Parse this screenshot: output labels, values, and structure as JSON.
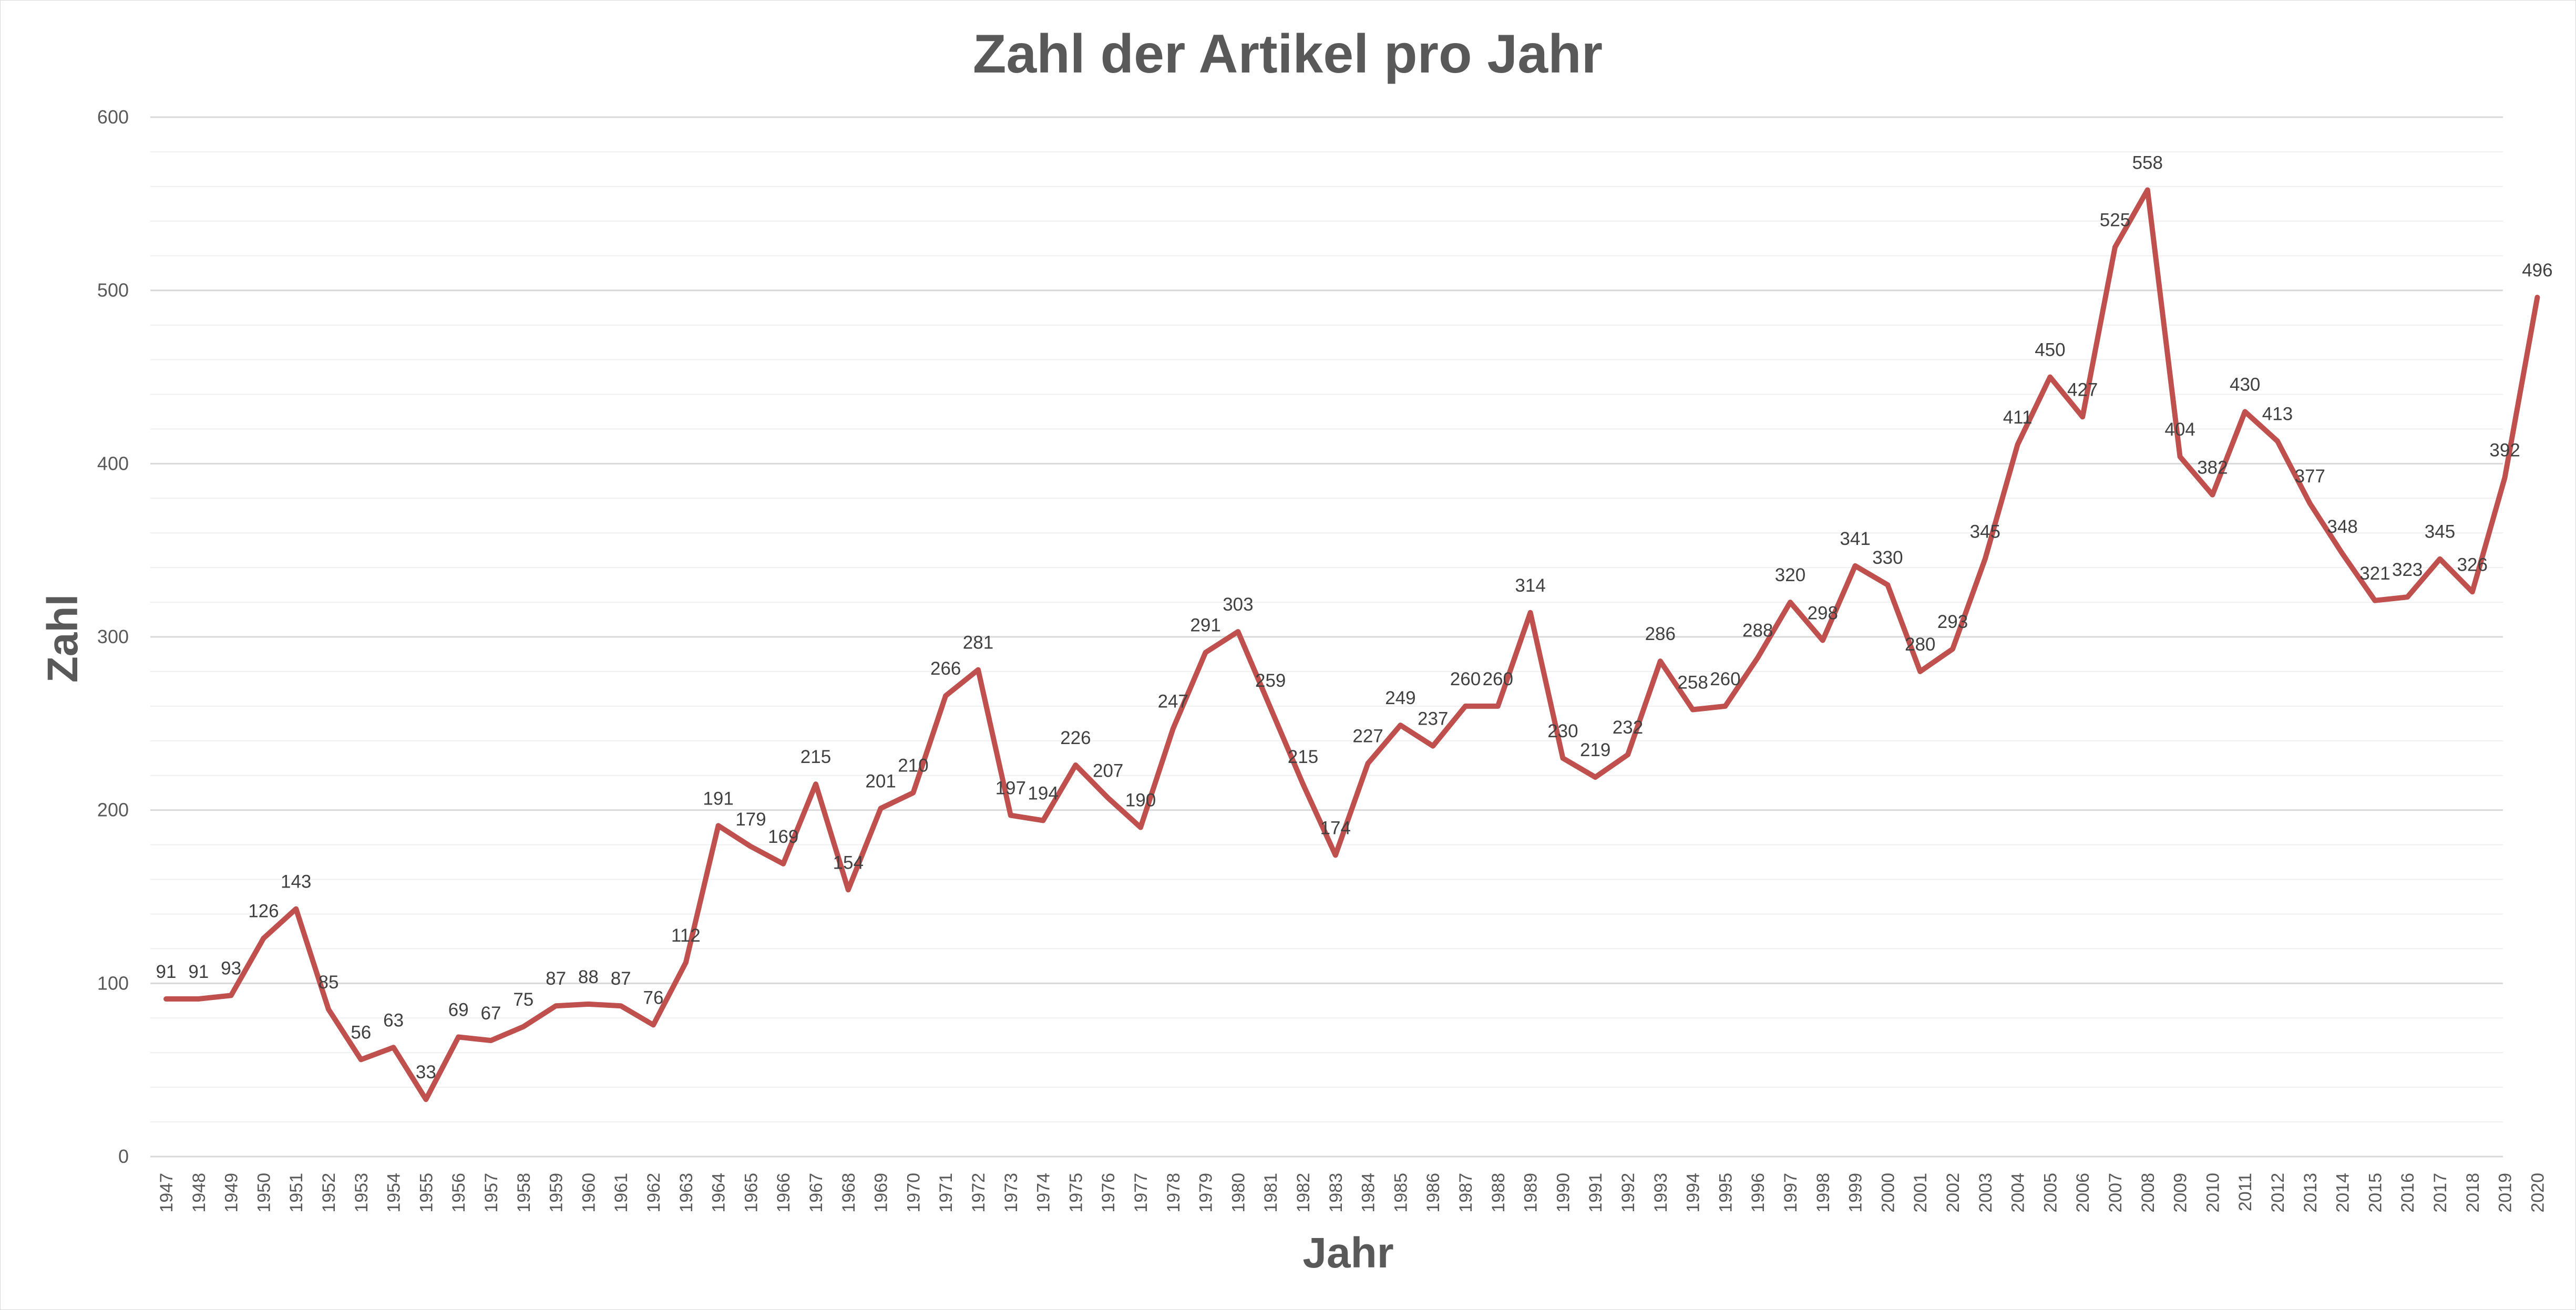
{
  "chart_data": {
    "type": "line",
    "title": "Zahl der Artikel pro Jahr",
    "xlabel": "Jahr",
    "ylabel": "Zahl",
    "ylim": [
      0,
      600
    ],
    "yticks": [
      0,
      100,
      200,
      300,
      400,
      500,
      600
    ],
    "grid": true,
    "legend": "none",
    "colors": {
      "line": "#c0504d",
      "major_grid": "#d9d9d9",
      "minor_grid": "#efefef"
    },
    "x": [
      "1947",
      "1948",
      "1949",
      "1950",
      "1951",
      "1952",
      "1953",
      "1954",
      "1955",
      "1956",
      "1957",
      "1958",
      "1959",
      "1960",
      "1961",
      "1962",
      "1963",
      "1964",
      "1965",
      "1966",
      "1967",
      "1968",
      "1969",
      "1970",
      "1971",
      "1972",
      "1973",
      "1974",
      "1975",
      "1976",
      "1977",
      "1978",
      "1979",
      "1980",
      "1981",
      "1982",
      "1983",
      "1984",
      "1985",
      "1986",
      "1987",
      "1988",
      "1989",
      "1990",
      "1991",
      "1992",
      "1993",
      "1994",
      "1995",
      "1996",
      "1997",
      "1998",
      "1999",
      "2000",
      "2001",
      "2002",
      "2003",
      "2004",
      "2005",
      "2006",
      "2007",
      "2008",
      "2009",
      "2010",
      "2011",
      "2012",
      "2013",
      "2014",
      "2015",
      "2016",
      "2017",
      "2018",
      "2019",
      "2020"
    ],
    "series": [
      {
        "values": [
          91,
          91,
          93,
          126,
          143,
          85,
          56,
          63,
          33,
          69,
          67,
          75,
          87,
          88,
          87,
          76,
          112,
          191,
          179,
          169,
          215,
          154,
          201,
          210,
          266,
          281,
          197,
          194,
          226,
          207,
          190,
          247,
          291,
          303,
          259,
          215,
          174,
          227,
          249,
          237,
          260,
          260,
          314,
          230,
          219,
          232,
          286,
          258,
          260,
          288,
          320,
          298,
          341,
          330,
          280,
          293,
          345,
          411,
          450,
          427,
          525,
          558,
          404,
          382,
          430,
          413,
          377,
          348,
          321,
          323,
          345,
          326,
          392,
          496
        ]
      }
    ]
  }
}
